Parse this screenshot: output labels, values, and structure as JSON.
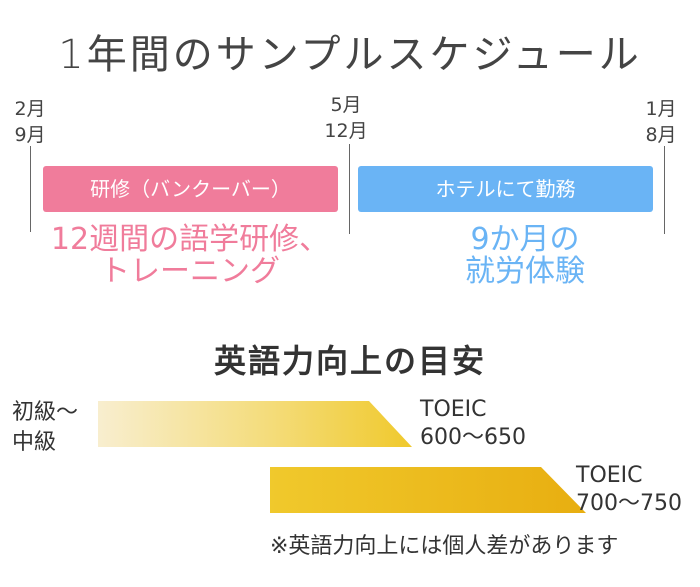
{
  "title": "1年間のサンプルスケジュール",
  "timeline": {
    "start": {
      "line1": "2月",
      "line2": "9月"
    },
    "middle": {
      "line1": "5月",
      "line2": "12月"
    },
    "end": {
      "line1": "1月",
      "line2": "8月"
    },
    "phase1": {
      "label": "研修（バンクーバー）",
      "desc_line1": "12週間の語学研修、",
      "desc_line2": "トレーニング",
      "color": "#f07c9b"
    },
    "phase2": {
      "label": "ホテルにて勤務",
      "desc_line1": "9か月の",
      "desc_line2": "就労体験",
      "color": "#6ab4f5"
    }
  },
  "english": {
    "heading": "英語力向上の目安",
    "level_line1": "初級〜",
    "level_line2": "中級",
    "target1": {
      "line1": "TOEIC",
      "line2": "600〜650"
    },
    "target2": {
      "line1": "TOEIC",
      "line2": "700〜750"
    },
    "note": "※英語力向上には個人差があります",
    "colors": {
      "light": "#f7ecc8",
      "gold": "#f0c92c",
      "dark": "#e8ae10"
    }
  }
}
